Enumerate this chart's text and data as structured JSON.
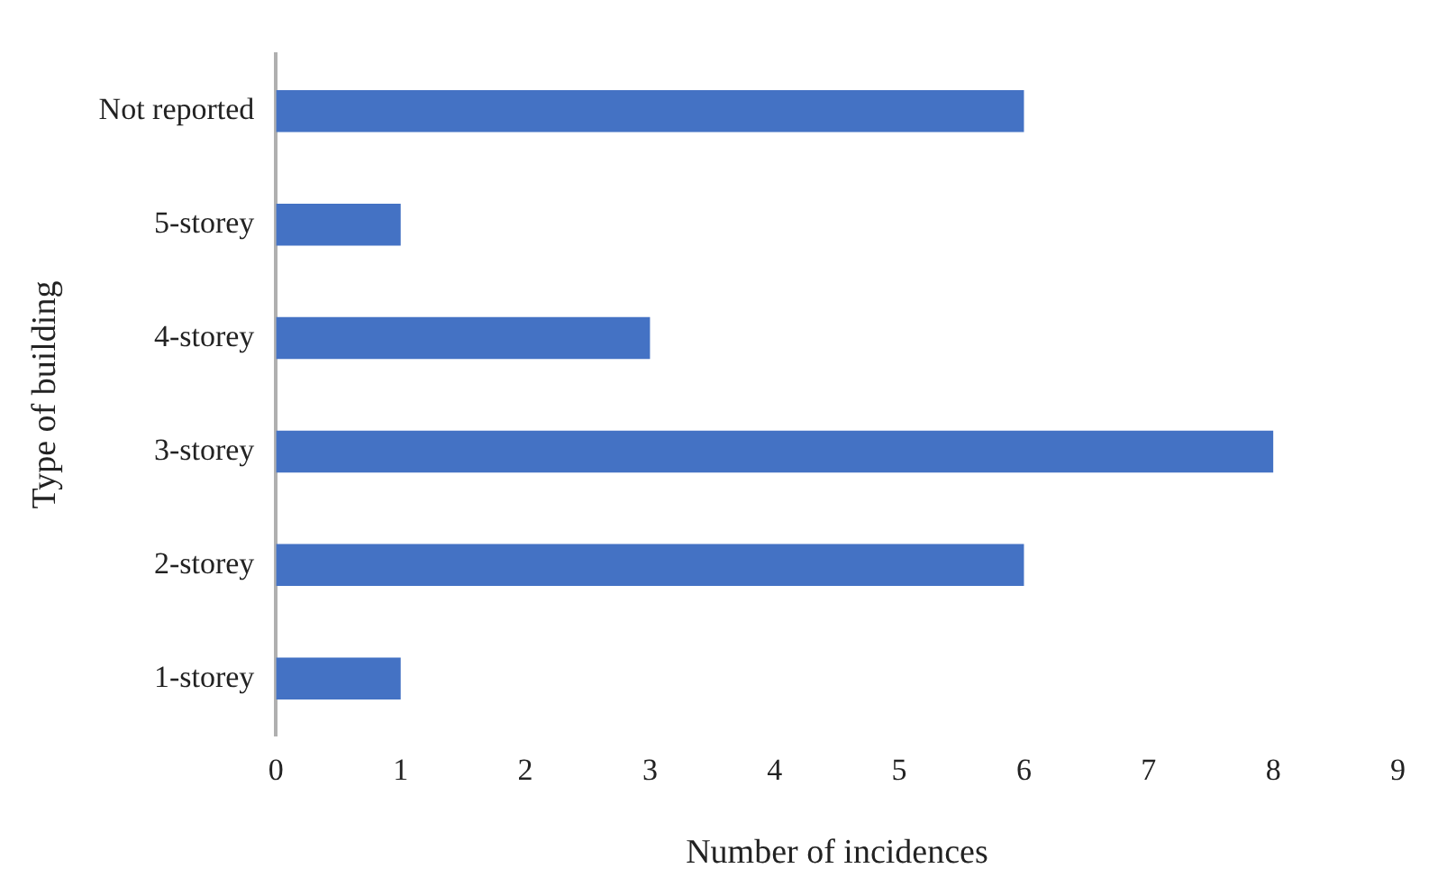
{
  "chart_data": {
    "type": "bar",
    "orientation": "horizontal",
    "xlabel": "Number of incidences",
    "ylabel": "Type of building",
    "categories": [
      "Not reported",
      "5-storey",
      "4-storey",
      "3-storey",
      "2-storey",
      "1-storey"
    ],
    "values": [
      6,
      1,
      3,
      8,
      6,
      1
    ],
    "color": "#4472c4",
    "xlim": [
      0,
      9
    ],
    "xticks": [
      0,
      1,
      2,
      3,
      4,
      5,
      6,
      7,
      8,
      9
    ],
    "grid": false,
    "legend": false
  }
}
